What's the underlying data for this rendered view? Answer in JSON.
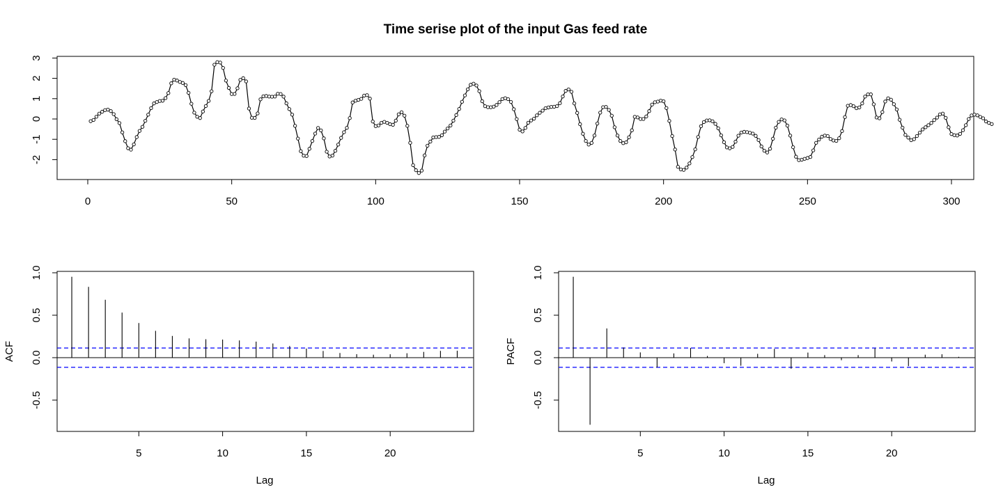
{
  "chart_data": [
    {
      "type": "line",
      "title": "Time serise plot of the input Gas feed rate",
      "xlabel": "",
      "ylabel": "",
      "xlim": [
        0,
        300
      ],
      "ylim": [
        -2.7,
        2.85
      ],
      "x_ticks": [
        "0",
        "50",
        "100",
        "150",
        "200",
        "250",
        "300"
      ],
      "y_ticks": [
        "-2",
        "-1",
        "0",
        "1",
        "2",
        "3"
      ],
      "markers": "open-circle",
      "series": [
        {
          "values": [
            -0.109,
            -0.048,
            0.111,
            0.265,
            0.357,
            0.436,
            0.461,
            0.388,
            0.241,
            -0.011,
            -0.201,
            -0.661,
            -1.09,
            -1.44,
            -1.509,
            -1.25,
            -0.889,
            -0.588,
            -0.384,
            -0.09,
            0.212,
            0.534,
            0.768,
            0.836,
            0.887,
            0.897,
            1.028,
            1.275,
            1.757,
            1.936,
            1.894,
            1.824,
            1.774,
            1.668,
            1.287,
            0.748,
            0.312,
            0.11,
            0.045,
            0.37,
            0.639,
            0.89,
            1.364,
            2.67,
            2.799,
            2.779,
            2.512,
            1.89,
            1.53,
            1.228,
            1.234,
            1.51,
            1.927,
            2.009,
            1.851,
            0.513,
            0.061,
            0.053,
            0.273,
            0.967,
            1.118,
            1.132,
            1.105,
            1.095,
            1.104,
            1.241,
            1.227,
            1.102,
            0.772,
            0.487,
            0.212,
            -0.34,
            -0.962,
            -1.582,
            -1.807,
            -1.823,
            -1.467,
            -1.083,
            -0.718,
            -0.441,
            -0.562,
            -0.953,
            -1.609,
            -1.845,
            -1.801,
            -1.565,
            -1.26,
            -0.927,
            -0.651,
            -0.437,
            0.042,
            0.815,
            0.899,
            0.942,
            0.991,
            1.15,
            1.173,
            1.003,
            -0.125,
            -0.35,
            -0.316,
            -0.189,
            -0.142,
            -0.188,
            -0.255,
            -0.285,
            -0.08,
            0.232,
            0.333,
            0.161,
            -0.339,
            -1.172,
            -2.273,
            -2.52,
            -2.66,
            -2.54,
            -1.792,
            -1.316,
            -1.111,
            -0.909,
            -0.891,
            -0.88,
            -0.802,
            -0.621,
            -0.467,
            -0.32,
            -0.083,
            0.194,
            0.491,
            0.848,
            1.16,
            1.46,
            1.684,
            1.739,
            1.648,
            1.37,
            0.875,
            0.629,
            0.583,
            0.578,
            0.607,
            0.691,
            0.831,
            0.98,
            1.024,
            0.977,
            0.838,
            0.481,
            -0.006,
            -0.525,
            -0.611,
            -0.44,
            -0.186,
            -0.073,
            0.015,
            0.181,
            0.306,
            0.412,
            0.532,
            0.568,
            0.595,
            0.604,
            0.633,
            0.781,
            1.108,
            1.384,
            1.455,
            1.338,
            0.765,
            0.301,
            -0.255,
            -0.726,
            -1.082,
            -1.259,
            -1.177,
            -0.815,
            -0.224,
            0.313,
            0.582,
            0.595,
            0.445,
            0.161,
            -0.408,
            -0.814,
            -1.082,
            -1.188,
            -1.147,
            -0.899,
            -0.555,
            0.106,
            0.078,
            -0.001,
            -0.001,
            0.125,
            0.387,
            0.711,
            0.825,
            0.857,
            0.902,
            0.873,
            0.538,
            -0.096,
            -0.838,
            -1.501,
            -2.353,
            -2.484,
            -2.504,
            -2.393,
            -2.188,
            -1.877,
            -1.495,
            -0.885,
            -0.357,
            -0.151,
            -0.074,
            -0.064,
            -0.111,
            -0.238,
            -0.46,
            -0.805,
            -1.141,
            -1.399,
            -1.444,
            -1.375,
            -1.116,
            -0.824,
            -0.669,
            -0.632,
            -0.646,
            -0.682,
            -0.718,
            -0.829,
            -1.036,
            -1.351,
            -1.562,
            -1.647,
            -1.466,
            -0.97,
            -0.43,
            -0.142,
            -0.021,
            -0.069,
            -0.324,
            -0.817,
            -1.391,
            -1.856,
            -2.026,
            -2.005,
            -1.961,
            -1.92,
            -1.869,
            -1.546,
            -1.174,
            -1.009,
            -0.872,
            -0.818,
            -0.84,
            -0.985,
            -1.058,
            -1.078,
            -0.948,
            -0.593,
            0.095,
            0.651,
            0.687,
            0.628,
            0.531,
            0.568,
            0.766,
            1.103,
            1.211,
            1.213,
            0.723,
            0.073,
            0.036,
            0.341,
            0.862,
            1.018,
            0.951,
            0.727,
            0.472,
            -0.04,
            -0.429,
            -0.785,
            -0.918,
            -1.045,
            -0.993,
            -0.838,
            -0.673,
            -0.512,
            -0.405,
            -0.305,
            -0.197,
            -0.055,
            0.067,
            0.226,
            0.266,
            0.055,
            -0.405,
            -0.742,
            -0.795,
            -0.812,
            -0.734,
            -0.551,
            -0.305,
            -0.002,
            0.174,
            0.212,
            0.178,
            0.101,
            0.035,
            -0.118,
            -0.192,
            -0.25
          ]
        }
      ]
    },
    {
      "type": "bar",
      "subtype": "acf",
      "xlabel": "Lag",
      "ylabel": "ACF",
      "xlim": [
        0,
        24
      ],
      "ylim": [
        -0.85,
        1.0
      ],
      "x_ticks": [
        "5",
        "10",
        "15",
        "20"
      ],
      "y_ticks": [
        "-0.5",
        "0.0",
        "0.5",
        "1.0"
      ],
      "confidence_band": 0.114,
      "lags": [
        1,
        2,
        3,
        4,
        5,
        6,
        7,
        8,
        9,
        10,
        11,
        12,
        13,
        14,
        15,
        16,
        17,
        18,
        19,
        20,
        21,
        22,
        23,
        24
      ],
      "values": [
        0.953,
        0.834,
        0.682,
        0.531,
        0.408,
        0.316,
        0.256,
        0.227,
        0.217,
        0.213,
        0.203,
        0.189,
        0.167,
        0.137,
        0.107,
        0.079,
        0.055,
        0.041,
        0.035,
        0.04,
        0.052,
        0.068,
        0.08,
        0.082
      ]
    },
    {
      "type": "bar",
      "subtype": "pacf",
      "xlabel": "Lag",
      "ylabel": "PACF",
      "xlim": [
        0,
        24
      ],
      "ylim": [
        -0.85,
        1.0
      ],
      "x_ticks": [
        "5",
        "10",
        "15",
        "20"
      ],
      "y_ticks": [
        "-0.5",
        "0.0",
        "0.5",
        "1.0"
      ],
      "confidence_band": 0.114,
      "lags": [
        1,
        2,
        3,
        4,
        5,
        6,
        7,
        8,
        9,
        10,
        11,
        12,
        13,
        14,
        15,
        16,
        17,
        18,
        19,
        20,
        21,
        22,
        23,
        24
      ],
      "values": [
        0.953,
        -0.79,
        0.344,
        0.12,
        0.062,
        -0.114,
        0.05,
        0.114,
        0.02,
        -0.065,
        -0.095,
        0.045,
        0.104,
        -0.13,
        0.06,
        0.03,
        -0.03,
        0.03,
        0.11,
        -0.045,
        -0.1,
        0.035,
        0.04,
        0.01
      ]
    }
  ],
  "colors": {
    "line": "#000000",
    "confidence_band": "#0000ff"
  }
}
